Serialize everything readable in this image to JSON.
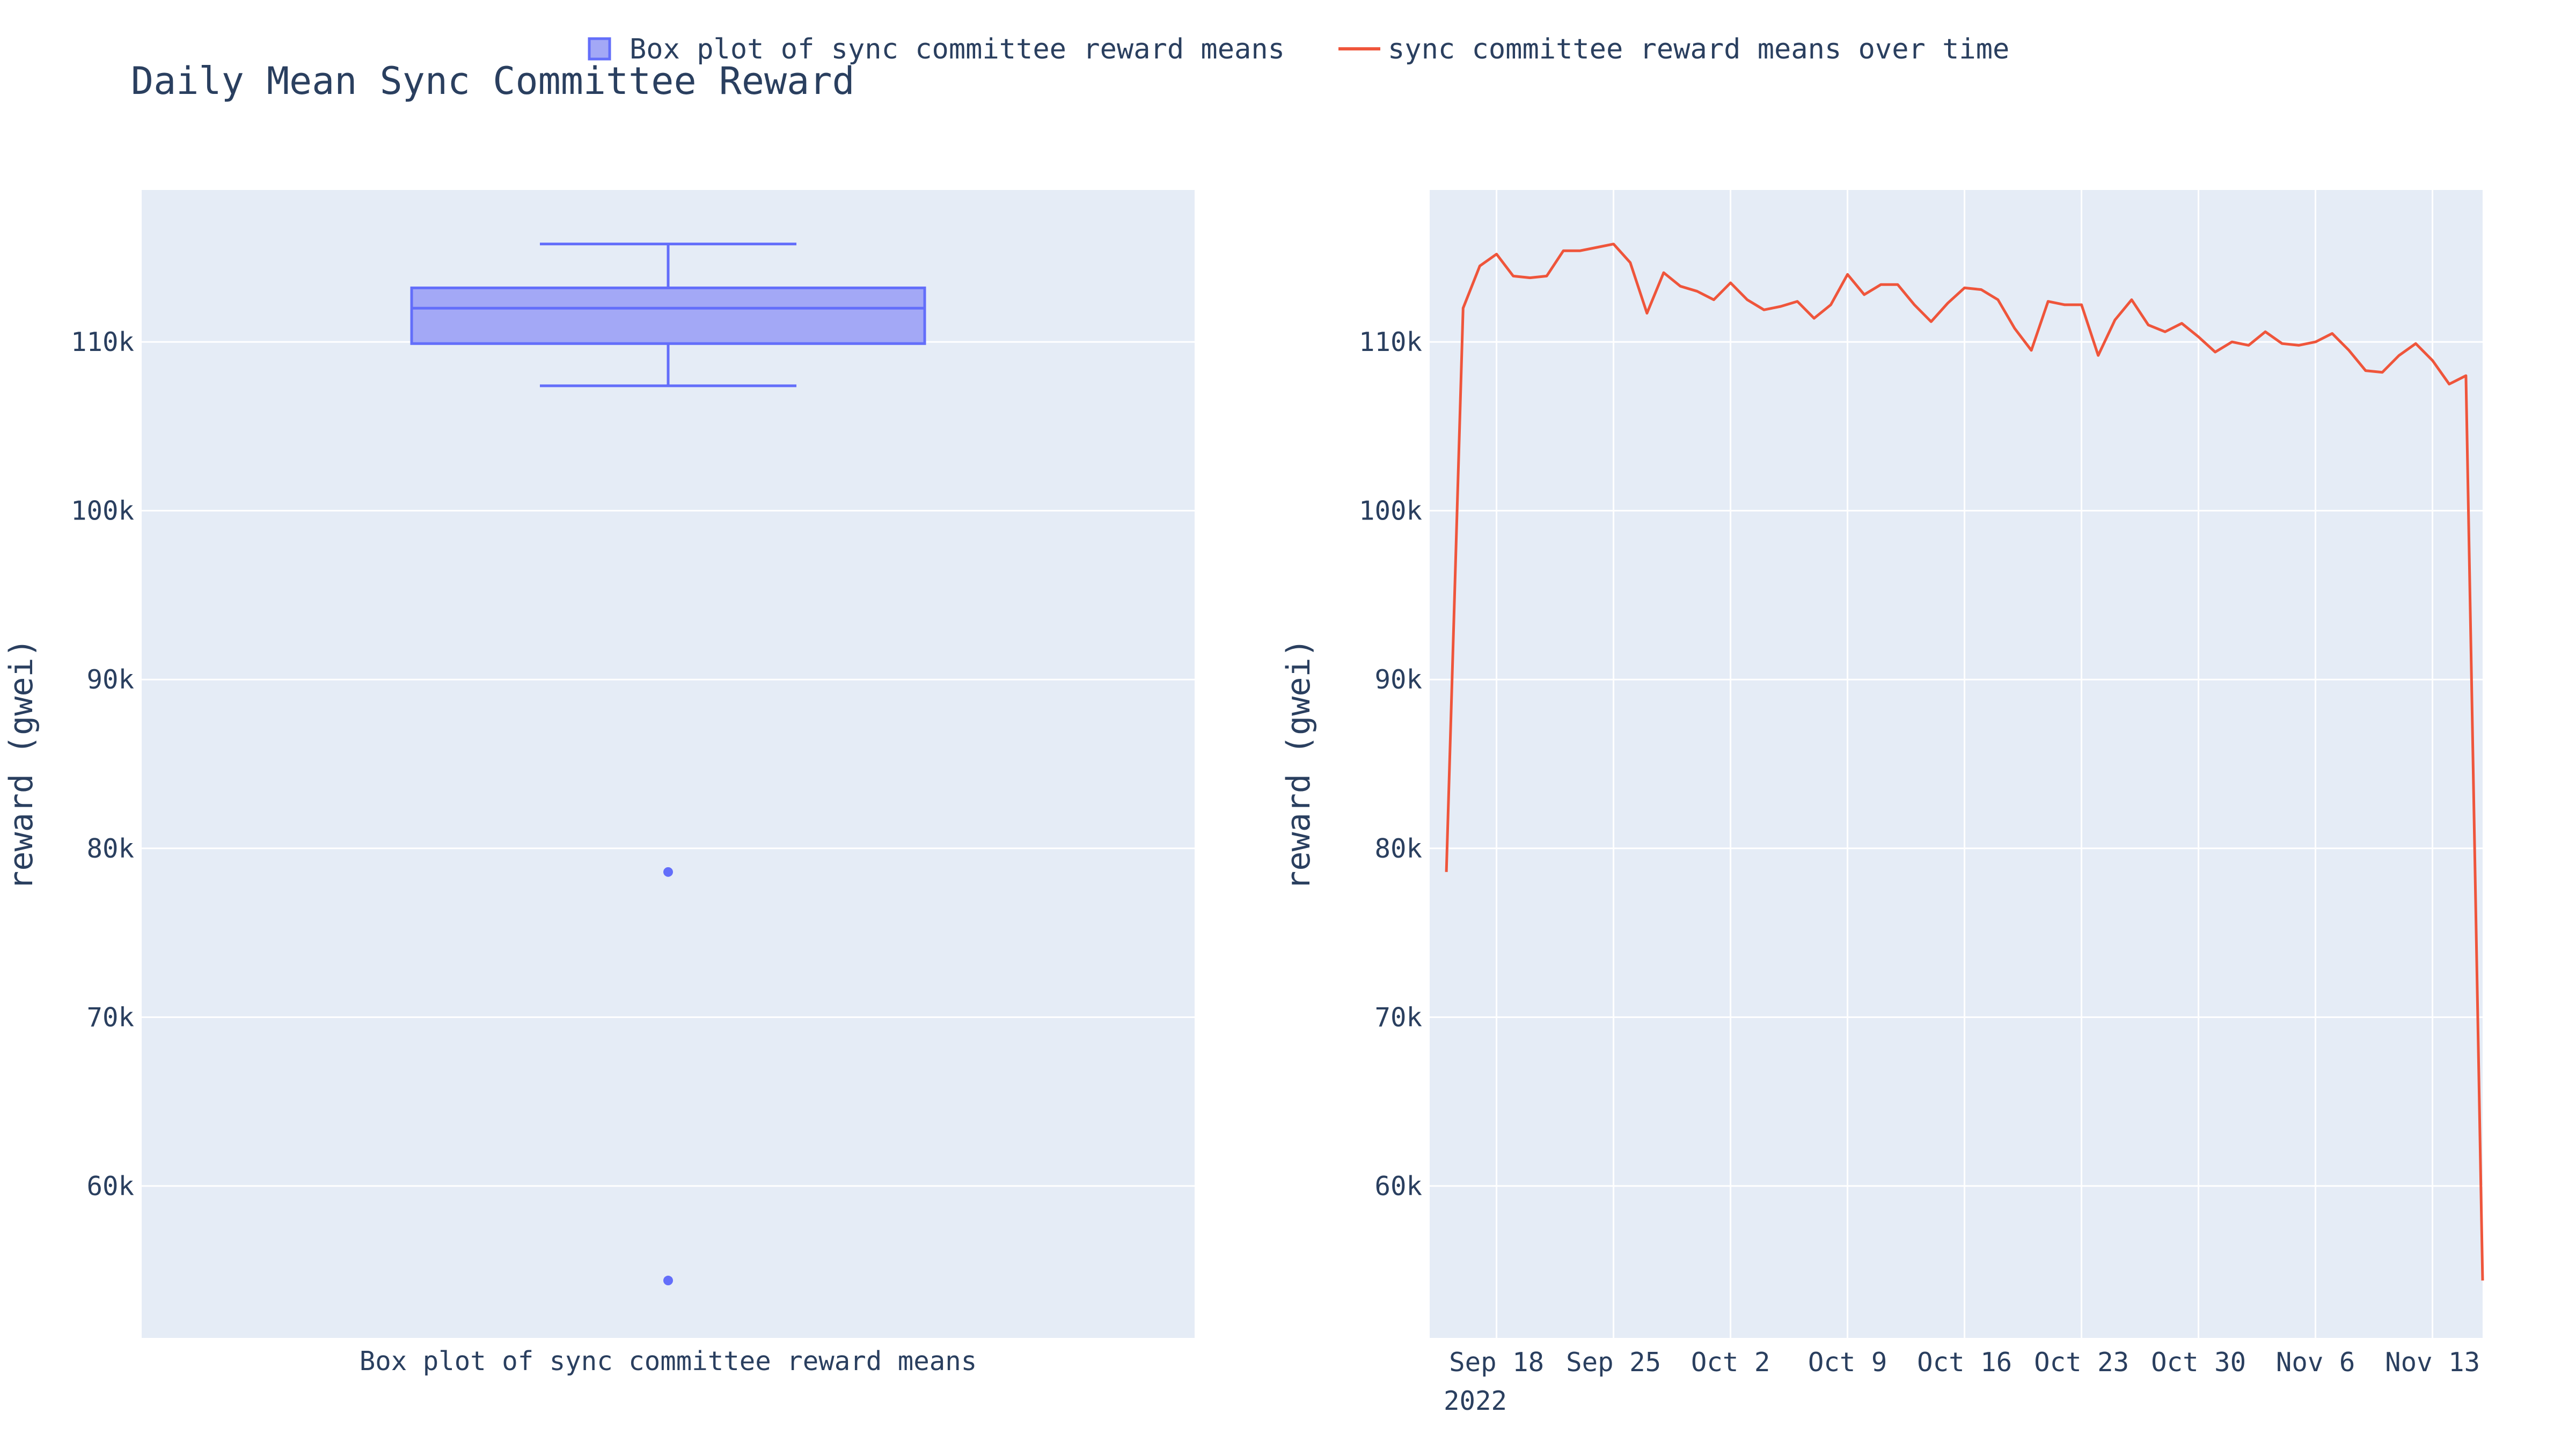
{
  "title": "Daily Mean Sync Committee Reward",
  "legend": [
    {
      "label": "Box plot of sync committee reward means",
      "symbol": "box",
      "color": "#636efa"
    },
    {
      "label": "sync committee reward means over time",
      "symbol": "line",
      "color": "#ef553b"
    }
  ],
  "colors": {
    "plot_bg": "#e5ecf6",
    "grid": "#ffffff",
    "box": "#636efa",
    "box_fill": "#a3a8f6",
    "line": "#ef553b",
    "text": "#2a3f5f"
  },
  "chart_data": [
    {
      "type": "box",
      "name": "Box plot of sync committee reward means",
      "categories": [
        "Box plot of sync committee reward means"
      ],
      "xlabel": "Box plot of sync committee reward means",
      "ylabel": "reward (gwei)",
      "ylim": [
        51000,
        119000
      ],
      "yticks": [
        60000,
        70000,
        80000,
        90000,
        100000,
        110000
      ],
      "ytick_labels": [
        "60k",
        "70k",
        "80k",
        "90k",
        "100k",
        "110k"
      ],
      "stats": {
        "lowerfence": 107400,
        "q1": 109900,
        "median": 112000,
        "q3": 113200,
        "upperfence": 115800
      },
      "outliers": [
        78600,
        54400
      ],
      "grid": true
    },
    {
      "type": "line",
      "name": "sync committee reward means over time",
      "xlabel": "",
      "ylabel": "reward (gwei)",
      "ylim": [
        51000,
        119000
      ],
      "xlim": [
        "2022-09-14",
        "2022-11-16"
      ],
      "yticks": [
        60000,
        70000,
        80000,
        90000,
        100000,
        110000
      ],
      "ytick_labels": [
        "60k",
        "70k",
        "80k",
        "90k",
        "100k",
        "110k"
      ],
      "xticks": [
        "2022-09-18",
        "2022-09-25",
        "2022-10-02",
        "2022-10-09",
        "2022-10-16",
        "2022-10-23",
        "2022-10-30",
        "2022-11-06",
        "2022-11-13"
      ],
      "xtick_labels": [
        "Sep 18",
        "Sep 25",
        "Oct 2",
        "Oct 9",
        "Oct 16",
        "Oct 23",
        "Oct 30",
        "Nov 6",
        "Nov 13"
      ],
      "xtick_year": "2022",
      "grid": true,
      "x": [
        "2022-09-15",
        "2022-09-16",
        "2022-09-17",
        "2022-09-18",
        "2022-09-19",
        "2022-09-20",
        "2022-09-21",
        "2022-09-22",
        "2022-09-23",
        "2022-09-24",
        "2022-09-25",
        "2022-09-26",
        "2022-09-27",
        "2022-09-28",
        "2022-09-29",
        "2022-09-30",
        "2022-10-01",
        "2022-10-02",
        "2022-10-03",
        "2022-10-04",
        "2022-10-05",
        "2022-10-06",
        "2022-10-07",
        "2022-10-08",
        "2022-10-09",
        "2022-10-10",
        "2022-10-11",
        "2022-10-12",
        "2022-10-13",
        "2022-10-14",
        "2022-10-15",
        "2022-10-16",
        "2022-10-17",
        "2022-10-18",
        "2022-10-19",
        "2022-10-20",
        "2022-10-21",
        "2022-10-22",
        "2022-10-23",
        "2022-10-24",
        "2022-10-25",
        "2022-10-26",
        "2022-10-27",
        "2022-10-28",
        "2022-10-29",
        "2022-10-30",
        "2022-10-31",
        "2022-11-01",
        "2022-11-02",
        "2022-11-03",
        "2022-11-04",
        "2022-11-05",
        "2022-11-06",
        "2022-11-07",
        "2022-11-08",
        "2022-11-09",
        "2022-11-10",
        "2022-11-11",
        "2022-11-12",
        "2022-11-13",
        "2022-11-14",
        "2022-11-15",
        "2022-11-16"
      ],
      "y": [
        78600,
        112000,
        114500,
        115200,
        113900,
        113800,
        113900,
        115400,
        115400,
        115600,
        115800,
        114700,
        111700,
        114100,
        113300,
        113000,
        112500,
        113500,
        112500,
        111900,
        112100,
        112400,
        111400,
        112200,
        114000,
        112800,
        113400,
        113400,
        112200,
        111200,
        112300,
        113200,
        113100,
        112500,
        110800,
        109500,
        112400,
        112200,
        112200,
        109200,
        111300,
        112500,
        111000,
        110600,
        111100,
        110300,
        109400,
        110000,
        109800,
        110600,
        109900,
        109800,
        110000,
        110500,
        109500,
        108300,
        108200,
        109200,
        109900,
        108900,
        107500,
        108000,
        54400
      ]
    }
  ]
}
